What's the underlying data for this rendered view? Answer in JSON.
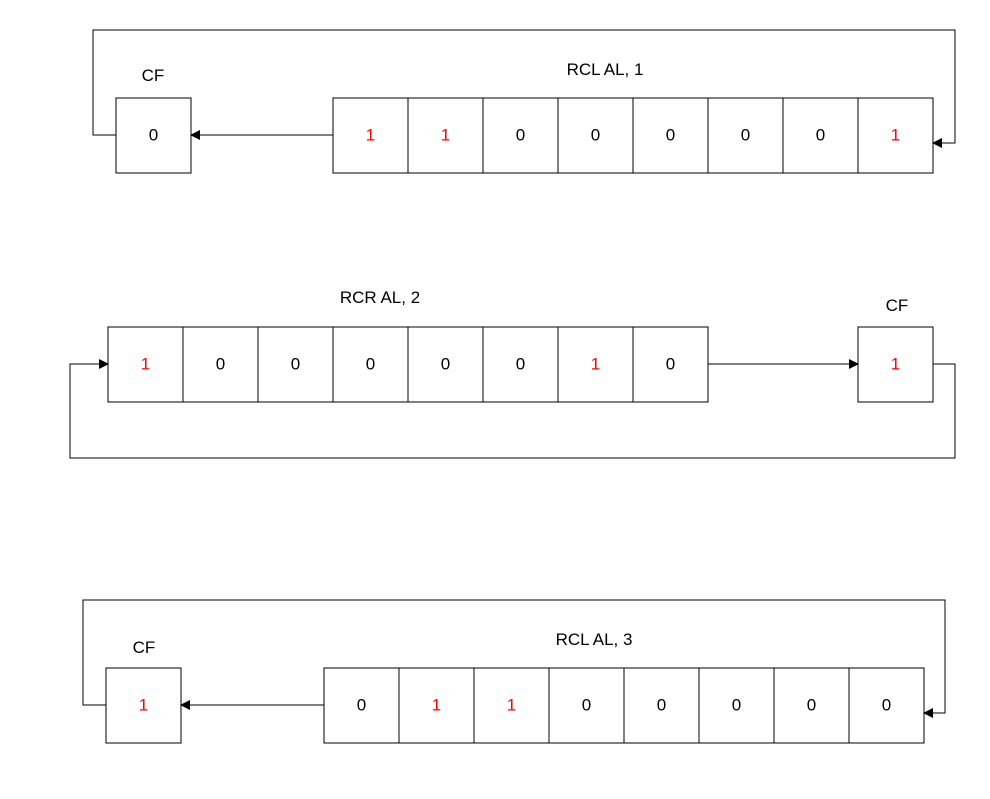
{
  "colors": {
    "highlight": "#ff0000",
    "normal": "#000000"
  },
  "diagrams": [
    {
      "op": "RCL AL, 1",
      "cf_label": "CF",
      "cf": {
        "value": "0",
        "highlight": false
      },
      "bits": [
        {
          "value": "1",
          "highlight": true
        },
        {
          "value": "1",
          "highlight": true
        },
        {
          "value": "0",
          "highlight": false
        },
        {
          "value": "0",
          "highlight": false
        },
        {
          "value": "0",
          "highlight": false
        },
        {
          "value": "0",
          "highlight": false
        },
        {
          "value": "0",
          "highlight": false
        },
        {
          "value": "1",
          "highlight": true
        }
      ]
    },
    {
      "op": "RCR AL, 2",
      "cf_label": "CF",
      "cf": {
        "value": "1",
        "highlight": true
      },
      "bits": [
        {
          "value": "1",
          "highlight": true
        },
        {
          "value": "0",
          "highlight": false
        },
        {
          "value": "0",
          "highlight": false
        },
        {
          "value": "0",
          "highlight": false
        },
        {
          "value": "0",
          "highlight": false
        },
        {
          "value": "0",
          "highlight": false
        },
        {
          "value": "1",
          "highlight": true
        },
        {
          "value": "0",
          "highlight": false
        }
      ]
    },
    {
      "op": "RCL AL, 3",
      "cf_label": "CF",
      "cf": {
        "value": "1",
        "highlight": true
      },
      "bits": [
        {
          "value": "0",
          "highlight": false
        },
        {
          "value": "1",
          "highlight": true
        },
        {
          "value": "1",
          "highlight": true
        },
        {
          "value": "0",
          "highlight": false
        },
        {
          "value": "0",
          "highlight": false
        },
        {
          "value": "0",
          "highlight": false
        },
        {
          "value": "0",
          "highlight": false
        },
        {
          "value": "0",
          "highlight": false
        }
      ]
    }
  ]
}
